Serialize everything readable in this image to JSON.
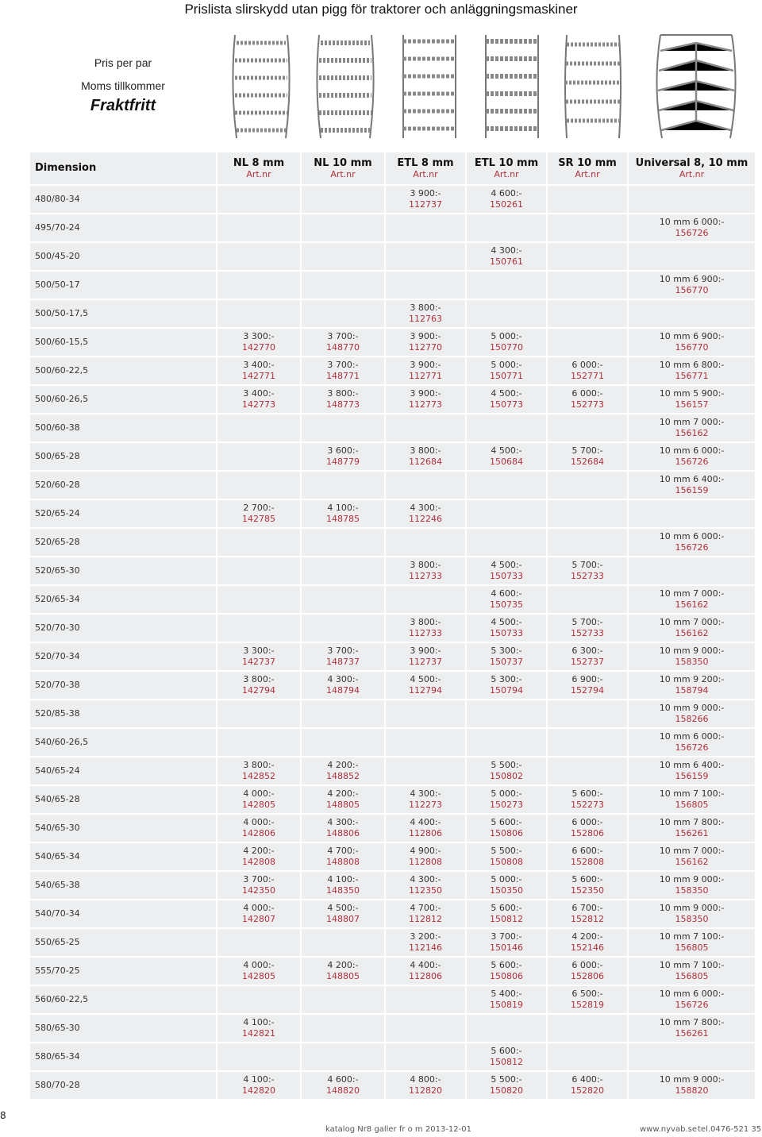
{
  "title": "Prislista slirskydd utan pigg för traktorer och anläggningsmaskiner",
  "intro": {
    "line1": "Pris per par",
    "line2": "Moms tillkommer",
    "line3": "Fraktfritt"
  },
  "header": {
    "dimension": "Dimension",
    "art_label": "Art.nr",
    "columns": [
      "NL 8 mm",
      "NL 10 mm",
      "ETL 8 mm",
      "ETL 10 mm",
      "SR 10 mm",
      "Universal 8, 10 mm"
    ]
  },
  "rows": [
    {
      "dim": "480/80-34",
      "cells": [
        null,
        null,
        {
          "p": "3 900:-",
          "a": "112737"
        },
        {
          "p": "4 600:-",
          "a": "150261"
        },
        null,
        null
      ]
    },
    {
      "dim": "495/70-24",
      "cells": [
        null,
        null,
        null,
        null,
        null,
        {
          "p": "10 mm   6 000:-",
          "a": "156726"
        }
      ]
    },
    {
      "dim": "500/45-20",
      "cells": [
        null,
        null,
        null,
        {
          "p": "4 300:-",
          "a": "150761"
        },
        null,
        null
      ]
    },
    {
      "dim": "500/50-17",
      "cells": [
        null,
        null,
        null,
        null,
        null,
        {
          "p": "10 mm   6 900:-",
          "a": "156770"
        }
      ]
    },
    {
      "dim": "500/50-17,5",
      "cells": [
        null,
        null,
        {
          "p": "3 800:-",
          "a": "112763"
        },
        null,
        null,
        null
      ]
    },
    {
      "dim": "500/60-15,5",
      "cells": [
        {
          "p": "3 300:-",
          "a": "142770"
        },
        {
          "p": "3 700:-",
          "a": "148770"
        },
        {
          "p": "3 900:-",
          "a": "112770"
        },
        {
          "p": "5 000:-",
          "a": "150770"
        },
        null,
        {
          "p": "10 mm   6 900:-",
          "a": "156770"
        }
      ]
    },
    {
      "dim": "500/60-22,5",
      "cells": [
        {
          "p": "3 400:-",
          "a": "142771"
        },
        {
          "p": "3 700:-",
          "a": "148771"
        },
        {
          "p": "3 900:-",
          "a": "112771"
        },
        {
          "p": "5 000:-",
          "a": "150771"
        },
        {
          "p": "6 000:-",
          "a": "152771"
        },
        {
          "p": "10 mm   6 800:-",
          "a": "156771"
        }
      ]
    },
    {
      "dim": "500/60-26,5",
      "cells": [
        {
          "p": "3 400:-",
          "a": "142773"
        },
        {
          "p": "3 800:-",
          "a": "148773"
        },
        {
          "p": "3 900:-",
          "a": "112773"
        },
        {
          "p": "4 500:-",
          "a": "150773"
        },
        {
          "p": "6 000:-",
          "a": "152773"
        },
        {
          "p": "10 mm   5 900:-",
          "a": "156157"
        }
      ]
    },
    {
      "dim": "500/60-38",
      "cells": [
        null,
        null,
        null,
        null,
        null,
        {
          "p": "10 mm  7 000:-",
          "a": "156162"
        }
      ]
    },
    {
      "dim": "500/65-28",
      "cells": [
        null,
        {
          "p": "3 600:-",
          "a": "148779"
        },
        {
          "p": "3 800:-",
          "a": "112684"
        },
        {
          "p": "4 500:-",
          "a": "150684"
        },
        {
          "p": "5 700:-",
          "a": "152684"
        },
        {
          "p": "10 mm   6 000:-",
          "a": "156726"
        }
      ]
    },
    {
      "dim": "520/60-28",
      "cells": [
        null,
        null,
        null,
        null,
        null,
        {
          "p": "10 mm   6 400:-",
          "a": "156159"
        }
      ]
    },
    {
      "dim": "520/65-24",
      "cells": [
        {
          "p": "2 700:-",
          "a": "142785"
        },
        {
          "p": "4 100:-",
          "a": "148785"
        },
        {
          "p": "4 300:-",
          "a": "112246"
        },
        null,
        null,
        null
      ]
    },
    {
      "dim": "520/65-28",
      "cells": [
        null,
        null,
        null,
        null,
        null,
        {
          "p": "10 mm   6 000:-",
          "a": "156726"
        }
      ]
    },
    {
      "dim": "520/65-30",
      "cells": [
        null,
        null,
        {
          "p": "3 800:-",
          "a": "112733"
        },
        {
          "p": "4 500:-",
          "a": "150733"
        },
        {
          "p": "5 700:-",
          "a": "152733"
        },
        null
      ]
    },
    {
      "dim": "520/65-34",
      "cells": [
        null,
        null,
        null,
        {
          "p": "4 600:-",
          "a": "150735"
        },
        null,
        {
          "p": "10 mm   7 000:-",
          "a": "156162"
        }
      ]
    },
    {
      "dim": "520/70-30",
      "cells": [
        null,
        null,
        {
          "p": "3 800:-",
          "a": "112733"
        },
        {
          "p": "4 500:-",
          "a": "150733"
        },
        {
          "p": "5 700:-",
          "a": "152733"
        },
        {
          "p": "10 mm  7 000:-",
          "a": "156162"
        }
      ]
    },
    {
      "dim": "520/70-34",
      "cells": [
        {
          "p": "3 300:-",
          "a": "142737"
        },
        {
          "p": "3 700:-",
          "a": "148737"
        },
        {
          "p": "3 900:-",
          "a": "112737"
        },
        {
          "p": "5 300:-",
          "a": "150737"
        },
        {
          "p": "6 300:-",
          "a": "152737"
        },
        {
          "p": "10 mm  9 000:-",
          "a": "158350"
        }
      ]
    },
    {
      "dim": "520/70-38",
      "cells": [
        {
          "p": "3 800:-",
          "a": "142794"
        },
        {
          "p": "4 300:-",
          "a": "148794"
        },
        {
          "p": "4 500:-",
          "a": "112794"
        },
        {
          "p": "5 300:-",
          "a": "150794"
        },
        {
          "p": "6 900:-",
          "a": "152794"
        },
        {
          "p": "10 mm  9 200:-",
          "a": "158794"
        }
      ]
    },
    {
      "dim": "520/85-38",
      "cells": [
        null,
        null,
        null,
        null,
        null,
        {
          "p": "10 mm  9 000:-",
          "a": "158266"
        }
      ]
    },
    {
      "dim": "540/60-26,5",
      "cells": [
        null,
        null,
        null,
        null,
        null,
        {
          "p": "10 mm  6 000:-",
          "a": "156726"
        }
      ]
    },
    {
      "dim": "540/65-24",
      "cells": [
        {
          "p": "3 800:-",
          "a": "142852"
        },
        {
          "p": "4 200:-",
          "a": "148852"
        },
        null,
        {
          "p": "5 500:-",
          "a": "150802"
        },
        null,
        {
          "p": "10 mm  6 400:-",
          "a": "156159"
        }
      ]
    },
    {
      "dim": "540/65-28",
      "cells": [
        {
          "p": "4 000:-",
          "a": "142805"
        },
        {
          "p": "4 200:-",
          "a": "148805"
        },
        {
          "p": "4 300:-",
          "a": "112273"
        },
        {
          "p": "5 000:-",
          "a": "150273"
        },
        {
          "p": "5 600:-",
          "a": "152273"
        },
        {
          "p": "10 mm  7 100:-",
          "a": "156805"
        }
      ]
    },
    {
      "dim": "540/65-30",
      "cells": [
        {
          "p": "4 000:-",
          "a": "142806"
        },
        {
          "p": "4 300:-",
          "a": "148806"
        },
        {
          "p": "4 400:-",
          "a": "112806"
        },
        {
          "p": "5 600:-",
          "a": "150806"
        },
        {
          "p": "6 000:-",
          "a": "152806"
        },
        {
          "p": "10 mm  7 800:-",
          "a": "156261"
        }
      ]
    },
    {
      "dim": "540/65-34",
      "cells": [
        {
          "p": "4 200:-",
          "a": "142808"
        },
        {
          "p": "4 700:-",
          "a": "148808"
        },
        {
          "p": "4 900:-",
          "a": "112808"
        },
        {
          "p": "5 500:-",
          "a": "150808"
        },
        {
          "p": "6 600:-",
          "a": "152808"
        },
        {
          "p": "10 mm  7 000:-",
          "a": "156162"
        }
      ]
    },
    {
      "dim": "540/65-38",
      "cells": [
        {
          "p": "3 700:-",
          "a": "142350"
        },
        {
          "p": "4 100:-",
          "a": "148350"
        },
        {
          "p": "4 300:-",
          "a": "112350"
        },
        {
          "p": "5 000:-",
          "a": "150350"
        },
        {
          "p": "5 600:-",
          "a": "152350"
        },
        {
          "p": "10 mm  9 000:-",
          "a": "158350"
        }
      ]
    },
    {
      "dim": "540/70-34",
      "cells": [
        {
          "p": "4 000:-",
          "a": "142807"
        },
        {
          "p": "4 500:-",
          "a": "148807"
        },
        {
          "p": "4 700:-",
          "a": "112812"
        },
        {
          "p": "5 600:-",
          "a": "150812"
        },
        {
          "p": "6 700:-",
          "a": "152812"
        },
        {
          "p": "10 mm  9 000:-",
          "a": "158350"
        }
      ]
    },
    {
      "dim": "550/65-25",
      "cells": [
        null,
        null,
        {
          "p": "3 200:-",
          "a": "112146"
        },
        {
          "p": "3 700:-",
          "a": "150146"
        },
        {
          "p": "4 200:-",
          "a": "152146"
        },
        {
          "p": "10 mm  7 100:-",
          "a": "156805"
        }
      ]
    },
    {
      "dim": "555/70-25",
      "cells": [
        {
          "p": "4 000:-",
          "a": "142805"
        },
        {
          "p": "4 200:-",
          "a": "148805"
        },
        {
          "p": "4 400:-",
          "a": "112806"
        },
        {
          "p": "5 600:-",
          "a": "150806"
        },
        {
          "p": "6 000:-",
          "a": "152806"
        },
        {
          "p": "10 mm  7 100:-",
          "a": "156805"
        }
      ]
    },
    {
      "dim": "560/60-22,5",
      "cells": [
        null,
        null,
        null,
        {
          "p": "5 400:-",
          "a": "150819"
        },
        {
          "p": "6 500:-",
          "a": "152819"
        },
        {
          "p": "10 mm  6 000:-",
          "a": "156726"
        }
      ]
    },
    {
      "dim": "580/65-30",
      "cells": [
        {
          "p": "4 100:-",
          "a": "142821"
        },
        null,
        null,
        null,
        null,
        {
          "p": "10 mm  7 800:-",
          "a": "156261"
        }
      ]
    },
    {
      "dim": "580/65-34",
      "cells": [
        null,
        null,
        null,
        {
          "p": "5 600:-",
          "a": "150812"
        },
        null,
        null
      ]
    },
    {
      "dim": "580/70-28",
      "cells": [
        {
          "p": "4 100:-",
          "a": "142820"
        },
        {
          "p": "4 600:-",
          "a": "148820"
        },
        {
          "p": "4 800:-",
          "a": "112820"
        },
        {
          "p": "5 500:-",
          "a": "150820"
        },
        {
          "p": "6 400:-",
          "a": "152820"
        },
        {
          "p": "10 mm  9 000:-",
          "a": "158820"
        }
      ]
    }
  ],
  "footer": {
    "page": "8",
    "catalog": "katalog Nr8 galler fr o m 2013-12-01",
    "web": "www.nyvab.se",
    "phone": "tel.0476-521 35"
  },
  "colors": {
    "cell_bg": "#eceeef",
    "art_nr": "#b0303a"
  }
}
